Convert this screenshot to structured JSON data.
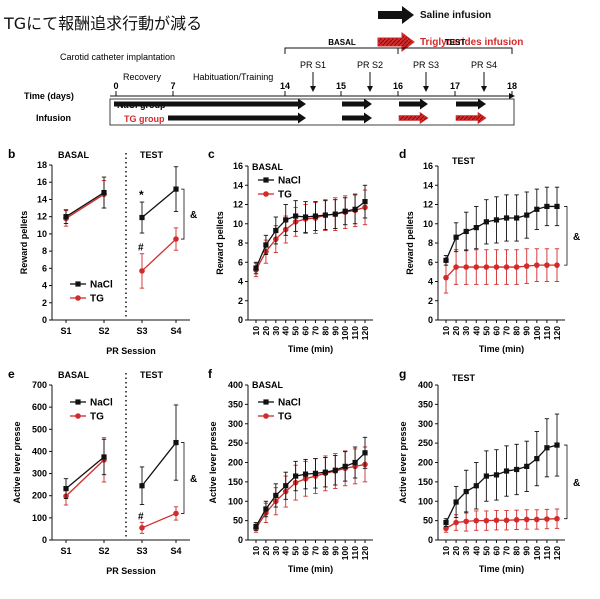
{
  "page_title": "TGにて報酬追求行動が減る",
  "colors": {
    "nacl": "#111111",
    "tg": "#d22b2b"
  },
  "legend_top": {
    "saline": "Saline infusion",
    "trig": "Triglycerides infusion"
  },
  "timeline": {
    "surgery": "Carotid catheter implantation",
    "recovery": "Recovery",
    "habituation": "Habituation/Training",
    "basal": "BASAL",
    "test": "TEST",
    "time_label": "Time (days)",
    "infusion_label": "Infusion",
    "nacl_group": "NaCl group",
    "tg_group": "TG group",
    "days": [
      "0",
      "7",
      "14",
      "15",
      "16",
      "17",
      "18"
    ],
    "sessions": [
      "PR S1",
      "PR S2",
      "PR S3",
      "PR S4"
    ]
  },
  "chart_data": [
    {
      "id": "b",
      "type": "line",
      "panel_label": "b",
      "titles": [
        "BASAL",
        "TEST"
      ],
      "xlabel": "PR Session",
      "ylabel": "Reward pellets",
      "categories": [
        "S1",
        "S2",
        "S3",
        "S4"
      ],
      "ylim": [
        0,
        18
      ],
      "yticks": [
        0,
        2,
        4,
        6,
        8,
        10,
        12,
        14,
        16,
        18
      ],
      "series": [
        {
          "name": "NaCl",
          "values": [
            12.0,
            14.8,
            11.9,
            15.2
          ],
          "errors": [
            0.8,
            1.8,
            1.8,
            2.6
          ]
        },
        {
          "name": "TG",
          "values": [
            11.8,
            14.6,
            5.7,
            9.4
          ],
          "errors": [
            0.9,
            1.6,
            2.0,
            1.3
          ]
        }
      ],
      "annotations": [
        "*",
        "#",
        "&"
      ]
    },
    {
      "id": "c",
      "type": "line",
      "panel_label": "c",
      "title": "BASAL",
      "xlabel": "Time (min)",
      "ylabel": "Reward pellets",
      "ylim": [
        0,
        16
      ],
      "yticks": [
        0,
        2,
        4,
        6,
        8,
        10,
        12,
        14,
        16
      ],
      "x": [
        10,
        20,
        30,
        40,
        50,
        60,
        70,
        80,
        90,
        100,
        110,
        120
      ],
      "series": [
        {
          "name": "NaCl",
          "values": [
            5.4,
            7.8,
            9.3,
            10.4,
            10.8,
            10.7,
            10.8,
            10.9,
            11.0,
            11.3,
            11.5,
            12.3
          ],
          "errors": [
            0.6,
            1.0,
            1.4,
            1.6,
            1.6,
            1.6,
            1.5,
            1.5,
            1.5,
            1.4,
            1.5,
            1.7
          ]
        },
        {
          "name": "TG",
          "values": [
            5.2,
            7.1,
            8.4,
            9.4,
            10.2,
            10.5,
            10.6,
            10.9,
            11.0,
            11.2,
            11.4,
            11.7
          ],
          "errors": [
            0.7,
            1.2,
            1.4,
            1.4,
            1.5,
            1.5,
            1.6,
            1.6,
            1.7,
            1.7,
            1.7,
            1.8
          ]
        }
      ]
    },
    {
      "id": "d",
      "type": "line",
      "panel_label": "d",
      "title": "TEST",
      "xlabel": "Time (min)",
      "ylabel": "Reward pellets",
      "ylim": [
        0,
        16
      ],
      "yticks": [
        0,
        2,
        4,
        6,
        8,
        10,
        12,
        14,
        16
      ],
      "x": [
        10,
        20,
        30,
        40,
        50,
        60,
        70,
        80,
        90,
        100,
        110,
        120
      ],
      "series": [
        {
          "name": "NaCl",
          "values": [
            6.2,
            8.6,
            9.2,
            9.6,
            10.2,
            10.4,
            10.6,
            10.6,
            10.9,
            11.5,
            11.8,
            11.8
          ],
          "errors": [
            0.5,
            1.5,
            2.0,
            2.2,
            2.3,
            2.4,
            2.4,
            2.4,
            2.4,
            2.1,
            2.0,
            2.0
          ]
        },
        {
          "name": "TG",
          "values": [
            4.4,
            5.5,
            5.5,
            5.5,
            5.5,
            5.5,
            5.5,
            5.5,
            5.6,
            5.7,
            5.7,
            5.7
          ],
          "errors": [
            1.6,
            1.8,
            1.8,
            1.8,
            1.8,
            1.8,
            1.8,
            1.8,
            1.8,
            1.7,
            1.7,
            1.7
          ]
        }
      ],
      "annotations": [
        "&"
      ]
    },
    {
      "id": "e",
      "type": "line",
      "panel_label": "e",
      "titles": [
        "BASAL",
        "TEST"
      ],
      "xlabel": "PR Session",
      "ylabel": "Active lever presse",
      "categories": [
        "S1",
        "S2",
        "S3",
        "S4"
      ],
      "ylim": [
        0,
        700
      ],
      "yticks": [
        0,
        100,
        200,
        300,
        400,
        500,
        600,
        700
      ],
      "series": [
        {
          "name": "NaCl",
          "values": [
            232,
            375,
            245,
            440
          ],
          "errors": [
            45,
            80,
            85,
            170
          ]
        },
        {
          "name": "TG",
          "values": [
            198,
            362,
            55,
            120
          ],
          "errors": [
            40,
            100,
            25,
            30
          ]
        }
      ],
      "annotations": [
        "#",
        "&"
      ]
    },
    {
      "id": "f",
      "type": "line",
      "panel_label": "f",
      "title": "BASAL",
      "xlabel": "Time (min)",
      "ylabel": "Active lever presse",
      "ylim": [
        0,
        400
      ],
      "yticks": [
        0,
        50,
        100,
        150,
        200,
        250,
        300,
        350,
        400
      ],
      "x": [
        10,
        20,
        30,
        40,
        50,
        60,
        70,
        80,
        90,
        100,
        110,
        120
      ],
      "series": [
        {
          "name": "NaCl",
          "values": [
            35,
            80,
            115,
            140,
            165,
            170,
            172,
            175,
            180,
            190,
            200,
            225
          ],
          "errors": [
            10,
            20,
            30,
            35,
            38,
            38,
            38,
            38,
            38,
            38,
            40,
            40
          ]
        },
        {
          "name": "TG",
          "values": [
            30,
            70,
            100,
            125,
            148,
            158,
            165,
            172,
            178,
            185,
            190,
            195
          ],
          "errors": [
            10,
            25,
            35,
            40,
            45,
            45,
            45,
            45,
            45,
            45,
            45,
            45
          ]
        }
      ]
    },
    {
      "id": "g",
      "type": "line",
      "panel_label": "g",
      "title": "TEST",
      "xlabel": "Time (min)",
      "ylabel": "Active lever presse",
      "ylim": [
        0,
        400
      ],
      "yticks": [
        0,
        50,
        100,
        150,
        200,
        250,
        300,
        350,
        400
      ],
      "x": [
        10,
        20,
        30,
        40,
        50,
        60,
        70,
        80,
        90,
        100,
        110,
        120
      ],
      "series": [
        {
          "name": "NaCl",
          "values": [
            45,
            98,
            125,
            140,
            165,
            168,
            178,
            182,
            190,
            210,
            238,
            245
          ],
          "errors": [
            10,
            40,
            55,
            60,
            65,
            65,
            65,
            65,
            65,
            70,
            75,
            80
          ]
        },
        {
          "name": "TG",
          "values": [
            30,
            45,
            48,
            50,
            50,
            51,
            51,
            52,
            53,
            53,
            54,
            55
          ],
          "errors": [
            10,
            20,
            25,
            25,
            25,
            25,
            25,
            25,
            25,
            25,
            25,
            25
          ]
        }
      ],
      "annotations": [
        "&"
      ]
    }
  ]
}
